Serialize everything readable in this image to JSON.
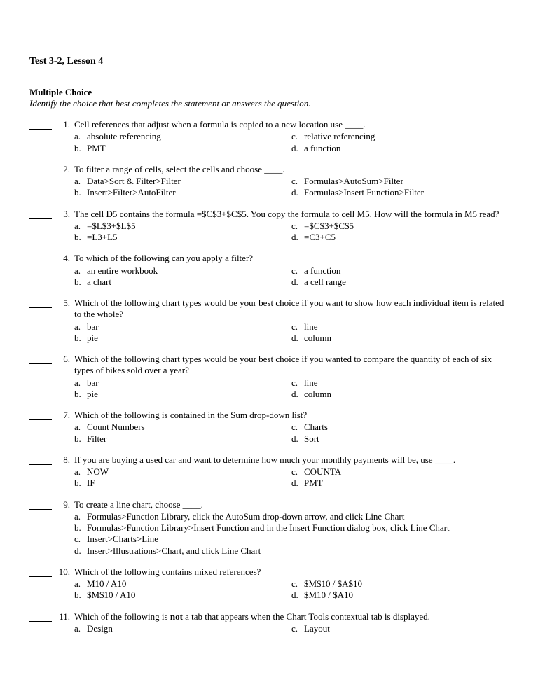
{
  "title": "Test 3-2, Lesson 4",
  "section_heading": "Multiple Choice",
  "section_sub": "Identify the choice that best completes the statement or answers the question.",
  "q1": {
    "num": "1.",
    "stem": "Cell references that adjust when a formula is copied to a new location use ____.",
    "a": "absolute referencing",
    "b": "PMT",
    "c": "relative referencing",
    "d": "a function"
  },
  "q2": {
    "num": "2.",
    "stem": "To filter a range of cells, select the cells and choose ____.",
    "a": "Data>Sort & Filter>Filter",
    "b": "Insert>Filter>AutoFilter",
    "c": "Formulas>AutoSum>Filter",
    "d": "Formulas>Insert Function>Filter"
  },
  "q3": {
    "num": "3.",
    "stem": "The cell D5 contains the formula =$C$3+$C$5. You copy the formula to cell M5. How will the formula in M5 read?",
    "a": "=$L$3+$L$5",
    "b": "=L3+L5",
    "c": "=$C$3+$C$5",
    "d": "=C3+C5"
  },
  "q4": {
    "num": "4.",
    "stem": "To which of the following can you apply a filter?",
    "a": "an entire workbook",
    "b": "a chart",
    "c": "a function",
    "d": "a cell range"
  },
  "q5": {
    "num": "5.",
    "stem": "Which of the following chart types would be your best choice if you want to show how each individual item is related to the whole?",
    "a": "bar",
    "b": "pie",
    "c": "line",
    "d": "column"
  },
  "q6": {
    "num": "6.",
    "stem": "Which of the following chart types would be your best choice if you wanted to compare the quantity of each of six types of bikes sold over a year?",
    "a": "bar",
    "b": "pie",
    "c": "line",
    "d": "column"
  },
  "q7": {
    "num": "7.",
    "stem": "Which of the following is contained in the Sum drop-down list?",
    "a": "Count Numbers",
    "b": "Filter",
    "c": "Charts",
    "d": "Sort"
  },
  "q8": {
    "num": "8.",
    "stem": "If you are buying a used car and want to determine how much your monthly payments will be, use ____.",
    "a": "NOW",
    "b": "IF",
    "c": "COUNTA",
    "d": "PMT"
  },
  "q9": {
    "num": "9.",
    "stem": "To create a line chart, choose ____.",
    "a": "Formulas>Function Library, click the AutoSum drop-down arrow, and click Line Chart",
    "b": "Formulas>Function Library>Insert Function and in the Insert Function dialog box, click Line Chart",
    "c": "Insert>Charts>Line",
    "d": "Insert>Illustrations>Chart, and click Line Chart"
  },
  "q10": {
    "num": "10.",
    "stem": "Which of the following contains mixed references?",
    "a": "M10 / A10",
    "b": "$M$10 / A10",
    "c": "$M$10 / $A$10",
    "d": "$M10 / $A10"
  },
  "q11": {
    "num": "11.",
    "stem_pre": "Which of the following is ",
    "stem_bold": "not",
    "stem_post": " a tab that appears when the Chart Tools contextual tab is displayed.",
    "a": "Design",
    "c": "Layout"
  },
  "letters": {
    "a": "a.",
    "b": "b.",
    "c": "c.",
    "d": "d."
  }
}
